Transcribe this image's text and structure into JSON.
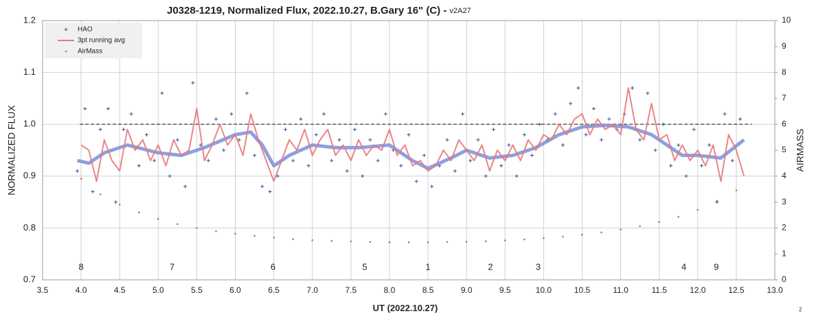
{
  "chart_data": {
    "type": "scatter",
    "title": "J0328-1219, Normalized Flux, 2022.10.27, B.Gary 16\" (C) - ",
    "title_version": "v2A27",
    "xlabel": "UT (2022.10.27)",
    "ylabel": "NORMALIZED FLUX",
    "y2label": "AIRMASS",
    "page_number": "2",
    "xlim": [
      3.5,
      13.0
    ],
    "xticks": [
      3.5,
      {
        "value": 4,
        "label": "4.0"
      },
      4.5,
      {
        "value": 5,
        "label": "5.0"
      },
      5.5,
      {
        "value": 6,
        "label": "6.0"
      },
      6.5,
      {
        "value": 7,
        "label": "7.0"
      },
      7.5,
      {
        "value": 8,
        "label": "8.0"
      },
      8.5,
      {
        "value": 9,
        "label": "9.0"
      },
      9.5,
      {
        "value": 10,
        "label": "10.0"
      },
      10.5,
      {
        "value": 11,
        "label": "11.0"
      },
      11.5,
      {
        "value": 12,
        "label": "12.0"
      },
      12.5,
      {
        "value": 13,
        "label": "13.0"
      }
    ],
    "ylim": [
      0.7,
      1.2
    ],
    "yticks": [
      0.7,
      0.8,
      0.9,
      {
        "value": 1,
        "label": "1.0"
      },
      1.1,
      1.2
    ],
    "y2lim": [
      0,
      10
    ],
    "y2ticks": [
      0,
      1,
      2,
      3,
      4,
      5,
      6,
      7,
      8,
      9,
      10
    ],
    "grid": true,
    "legend": "upper left",
    "reference_line": 1,
    "annotations": [
      {
        "text": "8",
        "x": 4.0
      },
      {
        "text": "7",
        "x": 5.18
      },
      {
        "text": "6",
        "x": 6.49
      },
      {
        "text": "5",
        "x": 7.68
      },
      {
        "text": "1",
        "x": 8.5
      },
      {
        "text": "2",
        "x": 9.31
      },
      {
        "text": "3",
        "x": 9.93
      },
      {
        "text": "4",
        "x": 11.82
      },
      {
        "text": "9",
        "x": 12.24
      }
    ],
    "series": [
      {
        "name": "HAO",
        "color": "#2f4f9f",
        "mode": "plus",
        "x": [
          3.95,
          4.05,
          4.15,
          4.25,
          4.35,
          4.45,
          4.55,
          4.65,
          4.75,
          4.85,
          4.95,
          5.05,
          5.15,
          5.25,
          5.35,
          5.45,
          5.55,
          5.65,
          5.75,
          5.85,
          5.95,
          6.05,
          6.15,
          6.25,
          6.35,
          6.45,
          6.55,
          6.65,
          6.75,
          6.85,
          6.95,
          7.05,
          7.15,
          7.25,
          7.35,
          7.45,
          7.55,
          7.65,
          7.75,
          7.85,
          7.95,
          8.05,
          8.15,
          8.25,
          8.35,
          8.45,
          8.55,
          8.65,
          8.75,
          8.85,
          8.95,
          9.05,
          9.15,
          9.25,
          9.35,
          9.45,
          9.55,
          9.65,
          9.75,
          9.85,
          9.95,
          10.05,
          10.15,
          10.25,
          10.35,
          10.45,
          10.55,
          10.65,
          10.75,
          10.85,
          10.95,
          11.05,
          11.15,
          11.25,
          11.35,
          11.45,
          11.55,
          11.65,
          11.75,
          11.85,
          11.95,
          12.05,
          12.15,
          12.25,
          12.35,
          12.45,
          12.55
        ],
        "values": [
          0.91,
          1.03,
          0.87,
          0.99,
          1.03,
          0.85,
          0.99,
          1.02,
          0.92,
          0.98,
          0.93,
          1.06,
          0.9,
          0.97,
          0.88,
          1.08,
          0.96,
          0.93,
          1.01,
          0.95,
          1.02,
          0.97,
          1.06,
          0.94,
          0.88,
          0.87,
          0.9,
          0.99,
          0.93,
          1.01,
          0.92,
          0.98,
          1.02,
          0.93,
          0.97,
          0.91,
          0.99,
          0.9,
          0.97,
          0.93,
          1.02,
          0.95,
          0.92,
          0.98,
          0.89,
          0.94,
          0.88,
          0.92,
          0.97,
          0.91,
          1.02,
          0.93,
          0.97,
          0.9,
          0.99,
          0.92,
          0.96,
          0.9,
          0.98,
          0.94,
          1.0,
          0.97,
          1.02,
          0.96,
          1.04,
          1.07,
          0.98,
          1.03,
          0.97,
          1.01,
          0.99,
          1.02,
          1.07,
          0.97,
          1.06,
          0.95,
          1.0,
          0.92,
          0.96,
          0.9,
          0.99,
          0.92,
          0.96,
          0.85,
          1.02,
          0.93,
          1.01
        ]
      },
      {
        "color": "#7a8fd8",
        "mode": "smooth",
        "x": [
          3.95,
          4.1,
          4.3,
          4.6,
          5.0,
          5.3,
          5.6,
          6.0,
          6.2,
          6.35,
          6.5,
          6.7,
          7.0,
          7.3,
          7.6,
          8.0,
          8.3,
          8.5,
          8.8,
          9.0,
          9.3,
          9.6,
          9.9,
          10.2,
          10.5,
          10.8,
          11.1,
          11.4,
          11.6,
          11.8,
          12.0,
          12.3,
          12.6
        ],
        "values": [
          0.93,
          0.925,
          0.945,
          0.96,
          0.945,
          0.94,
          0.955,
          0.98,
          0.985,
          0.96,
          0.92,
          0.94,
          0.96,
          0.955,
          0.955,
          0.96,
          0.93,
          0.915,
          0.935,
          0.95,
          0.935,
          0.94,
          0.955,
          0.98,
          0.995,
          0.998,
          0.995,
          0.98,
          0.96,
          0.94,
          0.94,
          0.935,
          0.97
        ]
      },
      {
        "name": "3pt running avg",
        "color": "#e87878",
        "mode": "line",
        "x": [
          4.0,
          4.1,
          4.2,
          4.3,
          4.4,
          4.5,
          4.6,
          4.7,
          4.8,
          4.9,
          5.0,
          5.1,
          5.2,
          5.3,
          5.4,
          5.5,
          5.6,
          5.7,
          5.8,
          5.9,
          6.0,
          6.1,
          6.2,
          6.3,
          6.4,
          6.5,
          6.6,
          6.7,
          6.8,
          6.9,
          7.0,
          7.1,
          7.2,
          7.3,
          7.4,
          7.5,
          7.6,
          7.7,
          7.8,
          7.9,
          8.0,
          8.1,
          8.2,
          8.3,
          8.4,
          8.5,
          8.6,
          8.7,
          8.8,
          8.9,
          9.0,
          9.1,
          9.2,
          9.3,
          9.4,
          9.5,
          9.6,
          9.7,
          9.8,
          9.9,
          10.0,
          10.1,
          10.2,
          10.3,
          10.4,
          10.5,
          10.6,
          10.7,
          10.8,
          10.9,
          11.0,
          11.1,
          11.2,
          11.3,
          11.4,
          11.5,
          11.6,
          11.7,
          11.8,
          11.9,
          12.0,
          12.1,
          12.2,
          12.3,
          12.4,
          12.5,
          12.6
        ],
        "values": [
          0.96,
          0.95,
          0.89,
          0.97,
          0.93,
          0.91,
          0.99,
          0.95,
          0.97,
          0.93,
          0.96,
          0.92,
          0.97,
          0.94,
          0.95,
          1.03,
          0.93,
          0.96,
          1.0,
          0.96,
          0.98,
          0.94,
          1.02,
          0.97,
          0.93,
          0.89,
          0.93,
          0.97,
          0.95,
          0.99,
          0.94,
          0.97,
          0.99,
          0.94,
          0.96,
          0.93,
          0.97,
          0.94,
          0.96,
          0.95,
          0.99,
          0.94,
          0.96,
          0.92,
          0.93,
          0.91,
          0.92,
          0.95,
          0.93,
          0.97,
          0.95,
          0.93,
          0.96,
          0.91,
          0.95,
          0.93,
          0.96,
          0.93,
          0.97,
          0.95,
          0.98,
          0.97,
          1.0,
          0.98,
          1.01,
          1.02,
          0.98,
          1.01,
          0.99,
          1.0,
          0.98,
          1.07,
          0.99,
          0.97,
          1.04,
          0.97,
          0.98,
          0.93,
          0.96,
          0.93,
          0.95,
          0.92,
          0.96,
          0.89,
          0.98,
          0.95,
          0.9
        ]
      },
      {
        "name": "AirMass",
        "color": "#c07830",
        "mode": "dot",
        "axis": "y2",
        "x": [
          4.0,
          4.25,
          4.5,
          4.75,
          5.0,
          5.25,
          5.5,
          5.75,
          6.0,
          6.25,
          6.5,
          6.75,
          7.0,
          7.25,
          7.5,
          7.75,
          8.0,
          8.25,
          8.5,
          8.75,
          9.0,
          9.25,
          9.5,
          9.75,
          10.0,
          10.25,
          10.5,
          10.75,
          11.0,
          11.25,
          11.5,
          11.75,
          12.0,
          12.25,
          12.5
        ],
        "values": [
          3.9,
          3.3,
          2.9,
          2.6,
          2.35,
          2.15,
          2.0,
          1.88,
          1.78,
          1.7,
          1.63,
          1.57,
          1.53,
          1.5,
          1.48,
          1.46,
          1.45,
          1.45,
          1.45,
          1.46,
          1.47,
          1.49,
          1.52,
          1.56,
          1.61,
          1.67,
          1.74,
          1.83,
          1.94,
          2.07,
          2.23,
          2.43,
          2.7,
          3.05,
          3.45
        ]
      }
    ]
  }
}
